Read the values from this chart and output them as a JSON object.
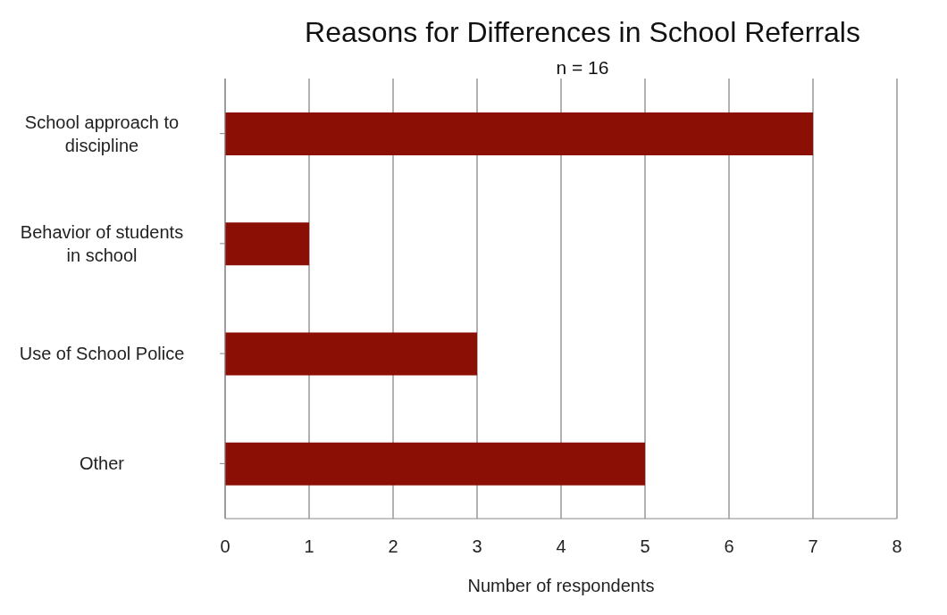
{
  "chart_data": {
    "type": "bar",
    "orientation": "horizontal",
    "title": "Reasons for Differences in School Referrals",
    "subtitle": "n = 16",
    "xlabel": "Number of respondents",
    "categories": [
      "School approach to discipline",
      "Behavior of students in school",
      "Use of School Police",
      "Other"
    ],
    "values": [
      7,
      1,
      3,
      5
    ],
    "color": "#8b0f04",
    "xlim": [
      0,
      8
    ],
    "xticks": [
      0,
      1,
      2,
      3,
      4,
      5,
      6,
      7,
      8
    ],
    "grid": "x"
  }
}
